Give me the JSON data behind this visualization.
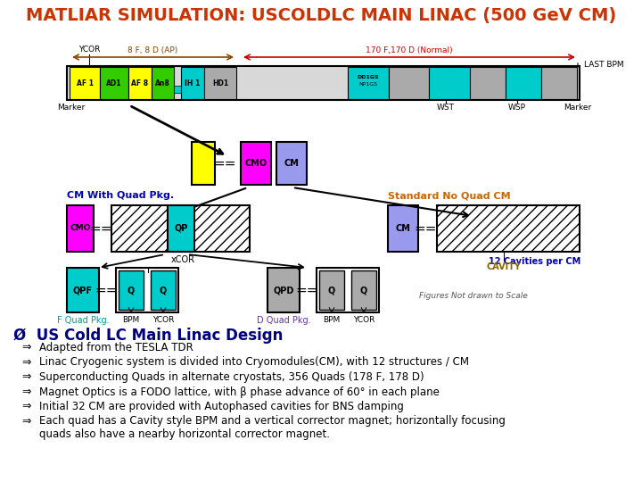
{
  "title": "MATLIAR SIMULATION: USCOLDLC MAIN LINAC (500 GeV CM)",
  "title_color": "#CC3300",
  "title_fontsize": 14,
  "bg_color": "#FFFFFF",
  "heading_text": "Ø  US Cold LC Main Linac Design",
  "heading_color": "#000080",
  "heading_fontsize": 12,
  "bullet_symbol": "⇒",
  "bullets": [
    "Adapted from the TESLA TDR",
    "Linac Cryogenic system is divided into Cryomodules(CM), with 12 structures / CM",
    "Superconducting Quads in alternate cryostats, 356 Quads (178 F, 178 D)",
    "Magnet Optics is a FODO lattice, with β phase advance of 60° in each plane",
    "Initial 32 CM are provided with Autophased cavities for BNS damping",
    "Each quad has a Cavity style BPM and a vertical corrector magnet; horizontally focusing\n    quads also have a nearby horizontal corrector magnet."
  ],
  "bullet_fontsize": 8.5
}
